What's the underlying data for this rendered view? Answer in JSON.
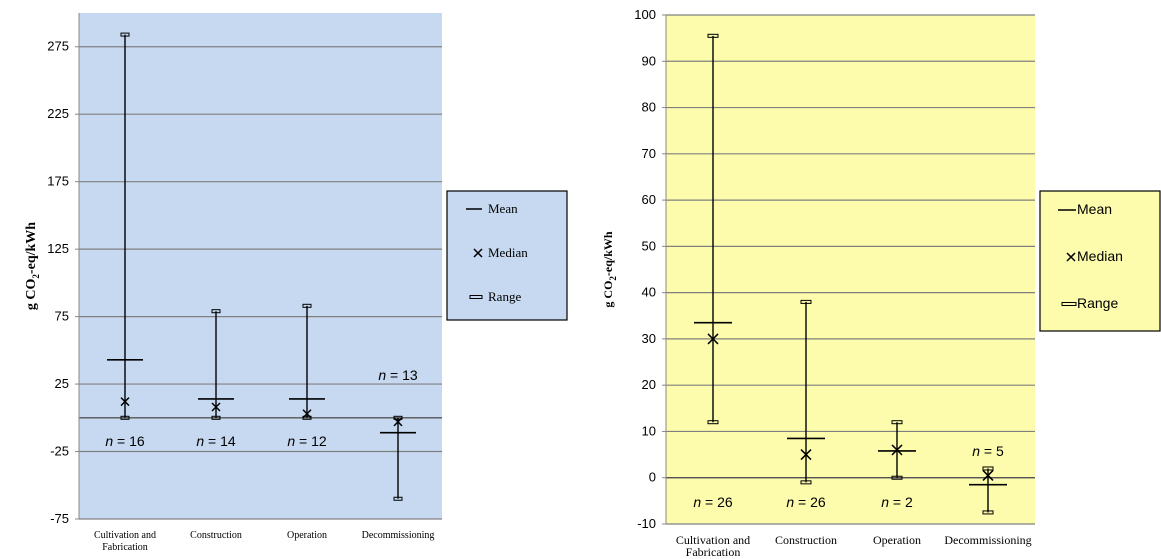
{
  "chart_data": [
    {
      "type": "range",
      "background": "#c6d9f1",
      "ylabel": "g CO2-eq/kWh",
      "ylim": [
        -75,
        300
      ],
      "yticks": [
        -75,
        -25,
        25,
        75,
        125,
        175,
        225,
        275
      ],
      "grid": true,
      "legend_placement": "right",
      "legend": [
        "Mean",
        "Median",
        "Range"
      ],
      "categories": [
        "Cultivation and Fabrication",
        "Construction",
        "Operation",
        "Decommissioning"
      ],
      "series": [
        {
          "name": "Mean",
          "values": [
            43,
            14,
            14,
            -11
          ]
        },
        {
          "name": "Median",
          "values": [
            12,
            8,
            3,
            -3
          ]
        },
        {
          "name": "Range",
          "values": [
            [
              0,
              284
            ],
            [
              0,
              79
            ],
            [
              0,
              83
            ],
            [
              -60,
              0
            ]
          ]
        }
      ],
      "annotations": [
        "n = 16",
        "n = 14",
        "n = 12",
        "n = 13"
      ]
    },
    {
      "type": "range",
      "background": "#fdfbac",
      "ylabel": "g CO2-eq/kWh",
      "ylim": [
        -10,
        100
      ],
      "yticks": [
        -10,
        0,
        10,
        20,
        30,
        40,
        50,
        60,
        70,
        80,
        90,
        100
      ],
      "grid": true,
      "legend_placement": "right",
      "legend": [
        "Mean",
        "Median",
        "Range"
      ],
      "categories": [
        "Cultivation and Fabrication",
        "Construction",
        "Operation",
        "Decommissioning"
      ],
      "series": [
        {
          "name": "Mean",
          "values": [
            33.5,
            8.5,
            5.8,
            -1.5
          ]
        },
        {
          "name": "Median",
          "values": [
            30,
            5,
            6,
            0.5
          ]
        },
        {
          "name": "Range",
          "values": [
            [
              12,
              95.5
            ],
            [
              -1,
              38
            ],
            [
              0,
              12
            ],
            [
              -7.5,
              2
            ]
          ]
        }
      ],
      "annotations": [
        "n = 26",
        "n = 26",
        "n = 2",
        "n = 5"
      ]
    }
  ]
}
